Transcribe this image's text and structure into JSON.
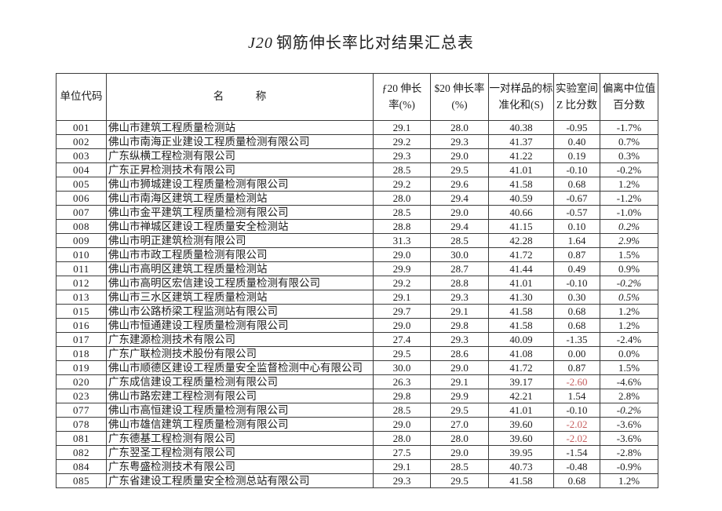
{
  "page": {
    "title_prefix": "J20",
    "title_main": "钢筋伸长率比对结果汇总表"
  },
  "colors": {
    "flagged_red": "#c65f5f",
    "text": "#1c1c1c",
    "border": "#3c3c3c"
  },
  "table": {
    "columns": [
      "单位代码",
      "名　　　称",
      "ƒ20 伸长\n率(%)",
      "$20 伸长率\n(%)",
      "一对样品的标\n准化和(S)",
      "实验室间\nZ 比分数",
      "偏离中位值\n百分数"
    ],
    "rows": [
      {
        "code": "001",
        "name": "佛山市建筑工程质量检测站",
        "f20": "29.1",
        "s20": "28.0",
        "sum": "40.38",
        "z": "-0.95",
        "dev": "-1.7%",
        "z_red": false,
        "dev_italic": false
      },
      {
        "code": "002",
        "name": "佛山市南海正业建设工程质量检测有限公司",
        "f20": "29.2",
        "s20": "29.3",
        "sum": "41.37",
        "z": "0.40",
        "dev": "0.7%",
        "z_red": false,
        "dev_italic": false
      },
      {
        "code": "003",
        "name": "广东纵横工程检测有限公司",
        "f20": "29.3",
        "s20": "29.0",
        "sum": "41.22",
        "z": "0.19",
        "dev": "0.3%",
        "z_red": false,
        "dev_italic": false
      },
      {
        "code": "004",
        "name": "广东正昇检测技术有限公司",
        "f20": "28.5",
        "s20": "29.5",
        "sum": "41.01",
        "z": "-0.10",
        "dev": "-0.2%",
        "z_red": false,
        "dev_italic": false
      },
      {
        "code": "005",
        "name": "佛山市狮城建设工程质量检测有限公司",
        "f20": "29.2",
        "s20": "29.6",
        "sum": "41.58",
        "z": "0.68",
        "dev": "1.2%",
        "z_red": false,
        "dev_italic": false
      },
      {
        "code": "006",
        "name": "佛山市南海区建筑工程质量检测站",
        "f20": "28.0",
        "s20": "29.4",
        "sum": "40.59",
        "z": "-0.67",
        "dev": "-1.2%",
        "z_red": false,
        "dev_italic": false
      },
      {
        "code": "007",
        "name": "佛山市金平建筑工程质量检测有限公司",
        "f20": "28.5",
        "s20": "29.0",
        "sum": "40.66",
        "z": "-0.57",
        "dev": "-1.0%",
        "z_red": false,
        "dev_italic": false
      },
      {
        "code": "008",
        "name": "佛山市禅城区建设工程质量安全检测站",
        "f20": "28.8",
        "s20": "29.4",
        "sum": "41.15",
        "z": "0.10",
        "dev": "0.2%",
        "z_red": false,
        "dev_italic": true
      },
      {
        "code": "009",
        "name": "佛山市明正建筑检测有限公司",
        "f20": "31.3",
        "s20": "28.5",
        "sum": "42.28",
        "z": "1.64",
        "dev": "2.9%",
        "z_red": false,
        "dev_italic": true
      },
      {
        "code": "010",
        "name": "佛山市市政工程质量检测有限公司",
        "f20": "29.0",
        "s20": "30.0",
        "sum": "41.72",
        "z": "0.87",
        "dev": "1.5%",
        "z_red": false,
        "dev_italic": false
      },
      {
        "code": "011",
        "name": "佛山市高明区建筑工程质量检测站",
        "f20": "29.9",
        "s20": "28.7",
        "sum": "41.44",
        "z": "0.49",
        "dev": "0.9%",
        "z_red": false,
        "dev_italic": false
      },
      {
        "code": "012",
        "name": "佛山市高明区宏信建设工程质量检测有限公司",
        "f20": "29.2",
        "s20": "28.8",
        "sum": "41.01",
        "z": "-0.10",
        "dev": "-0.2%",
        "z_red": false,
        "dev_italic": true
      },
      {
        "code": "013",
        "name": "佛山市三水区建筑工程质量检测站",
        "f20": "29.1",
        "s20": "29.3",
        "sum": "41.30",
        "z": "0.30",
        "dev": "0.5%",
        "z_red": false,
        "dev_italic": true
      },
      {
        "code": "015",
        "name": "佛山市公路桥梁工程监测站有限公司",
        "f20": "29.7",
        "s20": "29.1",
        "sum": "41.58",
        "z": "0.68",
        "dev": "1.2%",
        "z_red": false,
        "dev_italic": false
      },
      {
        "code": "016",
        "name": "佛山市恒通建设工程质量检测有限公司",
        "f20": "29.0",
        "s20": "29.8",
        "sum": "41.58",
        "z": "0.68",
        "dev": "1.2%",
        "z_red": false,
        "dev_italic": false
      },
      {
        "code": "017",
        "name": "广东建源检测技术有限公司",
        "f20": "27.4",
        "s20": "29.3",
        "sum": "40.09",
        "z": "-1.35",
        "dev": "-2.4%",
        "z_red": false,
        "dev_italic": false
      },
      {
        "code": "018",
        "name": "广东广联检测技术股份有限公司",
        "f20": "29.5",
        "s20": "28.6",
        "sum": "41.08",
        "z": "0.00",
        "dev": "0.0%",
        "z_red": false,
        "dev_italic": false
      },
      {
        "code": "019",
        "name": "佛山市顺德区建设工程质量安全监督检测中心有限公司",
        "f20": "30.0",
        "s20": "29.0",
        "sum": "41.72",
        "z": "0.87",
        "dev": "1.5%",
        "z_red": false,
        "dev_italic": false
      },
      {
        "code": "020",
        "name": "广东成信建设工程质量检测有限公司",
        "f20": "26.3",
        "s20": "29.1",
        "sum": "39.17",
        "z": "-2.60",
        "dev": "-4.6%",
        "z_red": true,
        "dev_italic": false
      },
      {
        "code": "023",
        "name": "佛山市路宏建工程检测有限公司",
        "f20": "29.8",
        "s20": "29.9",
        "sum": "42.21",
        "z": "1.54",
        "dev": "2.8%",
        "z_red": false,
        "dev_italic": false
      },
      {
        "code": "077",
        "name": "佛山市高恒建设工程质量检测有限公司",
        "f20": "28.5",
        "s20": "29.5",
        "sum": "41.01",
        "z": "-0.10",
        "dev": "-0.2%",
        "z_red": false,
        "dev_italic": true
      },
      {
        "code": "078",
        "name": "佛山市雄信建筑工程质量检测有限公司",
        "f20": "29.0",
        "s20": "27.0",
        "sum": "39.60",
        "z": "-2.02",
        "dev": "-3.6%",
        "z_red": true,
        "dev_italic": false
      },
      {
        "code": "081",
        "name": "广东德基工程检测有限公司",
        "f20": "28.0",
        "s20": "28.0",
        "sum": "39.60",
        "z": "-2.02",
        "dev": "-3.6%",
        "z_red": true,
        "dev_italic": false
      },
      {
        "code": "082",
        "name": "广东翌圣工程检测有限公司",
        "f20": "27.5",
        "s20": "29.0",
        "sum": "39.95",
        "z": "-1.54",
        "dev": "-2.8%",
        "z_red": false,
        "dev_italic": false
      },
      {
        "code": "084",
        "name": "广东粤盛检测技术有限公司",
        "f20": "29.1",
        "s20": "28.5",
        "sum": "40.73",
        "z": "-0.48",
        "dev": "-0.9%",
        "z_red": false,
        "dev_italic": false
      },
      {
        "code": "085",
        "name": "广东省建设工程质量安全检测总站有限公司",
        "f20": "29.3",
        "s20": "29.5",
        "sum": "41.58",
        "z": "0.68",
        "dev": "1.2%",
        "z_red": false,
        "dev_italic": false
      }
    ]
  }
}
